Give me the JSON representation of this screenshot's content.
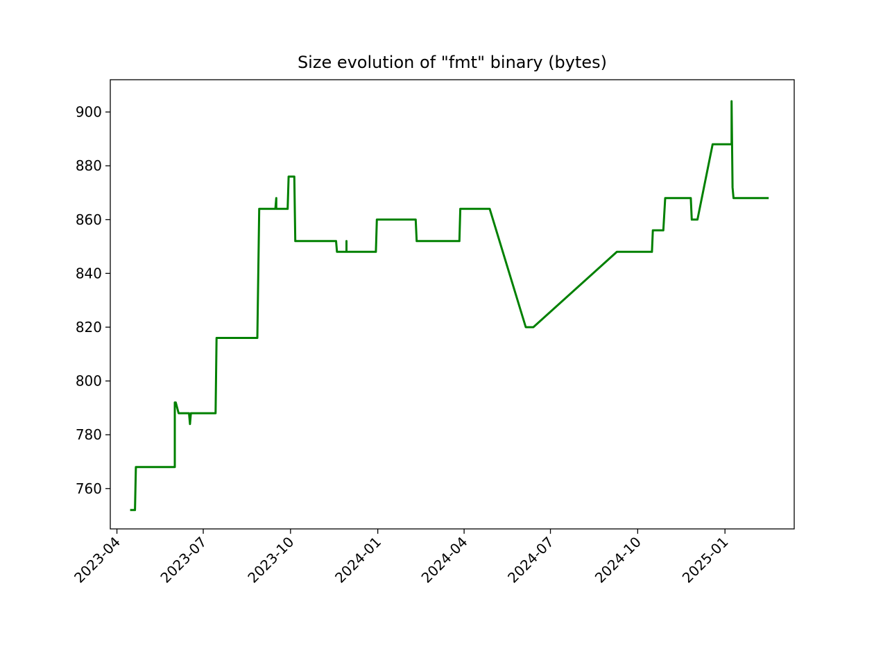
{
  "chart_data": {
    "type": "line",
    "title": "Size evolution of \"fmt\" binary (bytes)",
    "xlabel": "",
    "ylabel": "",
    "x_scale": "date",
    "xlim": [
      "2023-03-25",
      "2025-03-15"
    ],
    "ylim": [
      745,
      912
    ],
    "grid": false,
    "color": "#008000",
    "x_ticks": [
      "2023-04",
      "2023-07",
      "2023-10",
      "2024-01",
      "2024-04",
      "2024-07",
      "2024-10",
      "2025-01"
    ],
    "y_ticks": [
      760,
      780,
      800,
      820,
      840,
      860,
      880,
      900
    ],
    "series": [
      {
        "name": "",
        "points": [
          [
            "2023-04-16",
            752
          ],
          [
            "2023-04-20",
            752
          ],
          [
            "2023-04-21",
            768
          ],
          [
            "2023-06-01",
            768
          ],
          [
            "2023-06-01",
            792
          ],
          [
            "2023-06-02",
            792
          ],
          [
            "2023-06-05",
            788
          ],
          [
            "2023-06-16",
            788
          ],
          [
            "2023-06-17",
            784
          ],
          [
            "2023-06-18",
            788
          ],
          [
            "2023-07-14",
            788
          ],
          [
            "2023-07-15",
            816
          ],
          [
            "2023-08-27",
            816
          ],
          [
            "2023-08-29",
            864
          ],
          [
            "2023-09-15",
            864
          ],
          [
            "2023-09-16",
            868
          ],
          [
            "2023-09-16",
            864
          ],
          [
            "2023-09-28",
            864
          ],
          [
            "2023-09-29",
            876
          ],
          [
            "2023-10-05",
            876
          ],
          [
            "2023-10-06",
            852
          ],
          [
            "2023-11-18",
            852
          ],
          [
            "2023-11-19",
            848
          ],
          [
            "2023-11-29",
            848
          ],
          [
            "2023-11-29",
            852
          ],
          [
            "2023-11-29",
            848
          ],
          [
            "2023-12-30",
            848
          ],
          [
            "2023-12-31",
            860
          ],
          [
            "2024-02-10",
            860
          ],
          [
            "2024-02-11",
            852
          ],
          [
            "2024-03-27",
            852
          ],
          [
            "2024-03-28",
            864
          ],
          [
            "2024-04-28",
            864
          ],
          [
            "2024-06-05",
            820
          ],
          [
            "2024-06-13",
            820
          ],
          [
            "2024-09-09",
            848
          ],
          [
            "2024-10-16",
            848
          ],
          [
            "2024-10-17",
            856
          ],
          [
            "2024-10-28",
            856
          ],
          [
            "2024-10-30",
            868
          ],
          [
            "2024-11-26",
            868
          ],
          [
            "2024-11-27",
            860
          ],
          [
            "2024-12-03",
            860
          ],
          [
            "2024-12-19",
            888
          ],
          [
            "2025-01-08",
            888
          ],
          [
            "2025-01-08",
            904
          ],
          [
            "2025-01-09",
            872
          ],
          [
            "2025-01-10",
            868
          ],
          [
            "2025-02-15",
            868
          ]
        ]
      }
    ]
  }
}
